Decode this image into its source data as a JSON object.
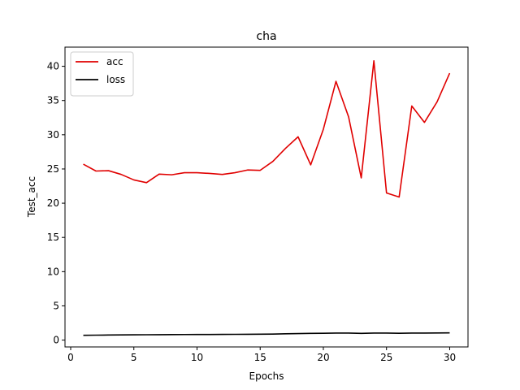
{
  "chart_data": {
    "type": "line",
    "title": "cha",
    "xlabel": "Epochs",
    "ylabel": "Test_acc",
    "xlim": [
      -0.45,
      31.45
    ],
    "ylim": [
      -1.0,
      42.8
    ],
    "xticks": [
      0,
      5,
      10,
      15,
      20,
      25,
      30
    ],
    "yticks": [
      0,
      5,
      10,
      15,
      20,
      25,
      30,
      35,
      40
    ],
    "grid": false,
    "legend_position": "top-left",
    "x": [
      1,
      2,
      3,
      4,
      5,
      6,
      7,
      8,
      9,
      10,
      11,
      12,
      13,
      14,
      15,
      16,
      17,
      18,
      19,
      20,
      21,
      22,
      23,
      24,
      25,
      26,
      27,
      28,
      29,
      30
    ],
    "series": [
      {
        "name": "acc",
        "color": "#e00000",
        "values": [
          25.7,
          24.7,
          24.75,
          24.2,
          23.4,
          23.0,
          24.25,
          24.15,
          24.45,
          24.45,
          24.35,
          24.2,
          24.45,
          24.85,
          24.8,
          26.1,
          28.0,
          29.7,
          25.6,
          30.8,
          37.8,
          32.6,
          23.7,
          40.8,
          21.5,
          20.9,
          34.2,
          31.8,
          34.8,
          39.0
        ]
      },
      {
        "name": "loss",
        "color": "#000000",
        "values": [
          0.7,
          0.72,
          0.74,
          0.76,
          0.77,
          0.78,
          0.79,
          0.8,
          0.81,
          0.82,
          0.82,
          0.83,
          0.84,
          0.85,
          0.86,
          0.88,
          0.92,
          0.95,
          0.98,
          1.0,
          1.02,
          1.02,
          0.98,
          1.03,
          1.02,
          1.0,
          1.02,
          1.03,
          1.04,
          1.05
        ]
      }
    ]
  }
}
